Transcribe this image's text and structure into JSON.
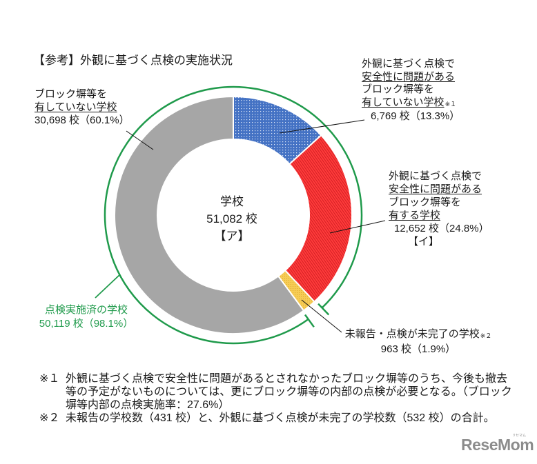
{
  "title": "【参考】外観に基づく点検の実施状況",
  "center_label": {
    "line1": "学校",
    "line2": "51,082 校",
    "line3": "【ア】"
  },
  "labels": {
    "no_walls": {
      "line1": "ブロック塀等を",
      "line2": "有していない学校",
      "value": "30,698 校（60.1%）"
    },
    "safe_no_walls": {
      "line1": "外観に基づく点検で",
      "line2": "安全性に問題がある",
      "line3": "ブロック塀等を",
      "line4": "有していない学校",
      "note": "※１",
      "value": "6,769 校（13.3%）"
    },
    "unsafe_walls": {
      "line1": "外観に基づく点検で",
      "line2": "安全性に問題がある",
      "line3": "ブロック塀等を",
      "line4": "有する学校",
      "value": "12,652 校（24.8%）",
      "tag": "【イ】"
    },
    "inspected": {
      "line1": "点検実施済の学校",
      "value": "50,119 校（98.1%）"
    },
    "unreported": {
      "line1": "未報告・点検が未完了の学校",
      "note": "※２",
      "value": "963 校（1.9%）"
    }
  },
  "footnotes": [
    {
      "mark": "※１",
      "lines": [
        "外観に基づく点検で安全性に問題があるとされなかったブロック塀等のうち、今後も撤去",
        "等の予定がないものについては、更にブロック塀等の内部の点検が必要となる。（ブロック",
        "塀等内部の点検実施率：27.6%）"
      ]
    },
    {
      "mark": "※２",
      "lines": [
        "未報告の学校数（431 校）と、外観に基づく点検が未完了の学校数（532 校）の合計。"
      ]
    }
  ],
  "logo": {
    "text": "ReseMom",
    "kana": "リセマム"
  },
  "colors": {
    "blue": "#4472c4",
    "red": "#ff3b3b",
    "yellow": "#f6c94a",
    "gray": "#a6a6a6",
    "green": "#1f9a4b"
  },
  "chart_data": {
    "type": "pie",
    "variant": "donut",
    "title": "【参考】外観に基づく点検の実施状況",
    "center_text": [
      "学校",
      "51,082 校",
      "【ア】"
    ],
    "total": 51082,
    "start_angle": "12 o'clock, clockwise",
    "categories": [
      "外観に基づく点検で安全性に問題があるブロック塀等を有していない学校",
      "外観に基づく点検で安全性に問題があるブロック塀等を有する学校【イ】",
      "未報告・点検が未完了の学校",
      "ブロック塀等を有していない学校"
    ],
    "values": [
      6769,
      12652,
      963,
      30698
    ],
    "percentages": [
      13.3,
      24.8,
      1.9,
      60.1
    ],
    "colors": [
      "#4472c4",
      "#ff3b3b",
      "#f6c94a",
      "#a6a6a6"
    ],
    "patterns": [
      "dots",
      "diagonal-stripes",
      "dots",
      "solid"
    ],
    "group_bracket": {
      "label": "点検実施済の学校",
      "value": 50119,
      "percentage": 98.1,
      "includes": [
        0,
        1,
        3
      ],
      "color": "#1f9a4b"
    },
    "footnotes": {
      "inner_inspection_rate_pct": 27.6,
      "unreported_schools": 431,
      "incomplete_inspection_schools": 532
    }
  }
}
